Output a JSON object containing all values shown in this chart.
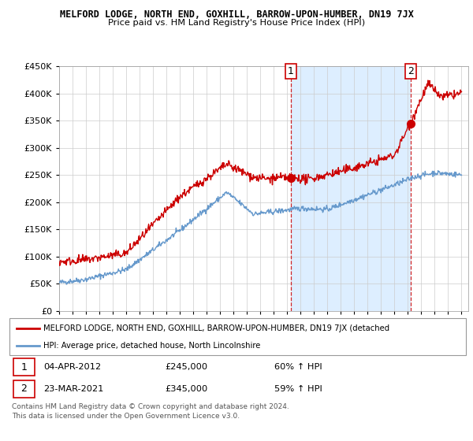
{
  "title": "MELFORD LODGE, NORTH END, GOXHILL, BARROW-UPON-HUMBER, DN19 7JX",
  "subtitle": "Price paid vs. HM Land Registry's House Price Index (HPI)",
  "ylim": [
    0,
    450000
  ],
  "sale1_date": "04-APR-2012",
  "sale1_price": 245000,
  "sale1_x": 2012.27,
  "sale2_date": "23-MAR-2021",
  "sale2_price": 345000,
  "sale2_x": 2021.22,
  "legend_property": "MELFORD LODGE, NORTH END, GOXHILL, BARROW-UPON-HUMBER, DN19 7JX (detached",
  "legend_hpi": "HPI: Average price, detached house, North Lincolnshire",
  "footer1": "Contains HM Land Registry data © Crown copyright and database right 2024.",
  "footer2": "This data is licensed under the Open Government Licence v3.0.",
  "property_color": "#cc0000",
  "hpi_color": "#6699cc",
  "shade_color": "#ddeeff",
  "dashed_color": "#cc0000",
  "background_color": "#ffffff",
  "grid_color": "#cccccc",
  "xlim_min": 1995,
  "xlim_max": 2025.5
}
